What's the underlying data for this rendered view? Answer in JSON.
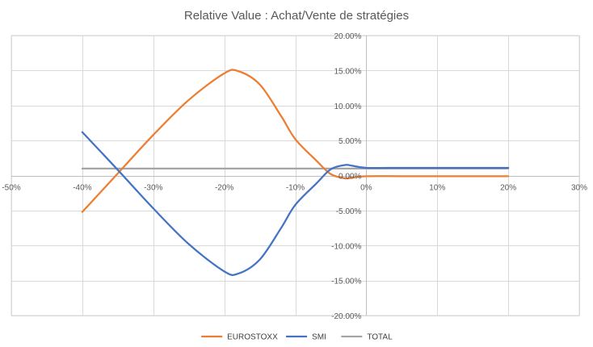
{
  "chart_data": {
    "type": "line",
    "title": "Relative Value : Achat/Vente de stratégies",
    "xlabel": "",
    "ylabel": "",
    "xlim": [
      -0.5,
      0.3
    ],
    "ylim": [
      -0.2,
      0.2
    ],
    "x_ticks": [
      -0.5,
      -0.4,
      -0.3,
      -0.2,
      -0.1,
      0,
      0.1,
      0.2,
      0.3
    ],
    "x_tick_labels": [
      "-50%",
      "-40%",
      "-30%",
      "-20%",
      "-10%",
      "0%",
      "10%",
      "20%",
      "30%"
    ],
    "y_ticks": [
      0.2,
      0.15,
      0.1,
      0.05,
      0,
      -0.05,
      -0.1,
      -0.15,
      -0.2
    ],
    "y_tick_labels": [
      "20.00%",
      "15.00%",
      "10.00%",
      "5.00%",
      "0.00%",
      "-5.00%",
      "-10.00%",
      "-15.00%",
      "-20.00%"
    ],
    "grid": true,
    "legend_position": "bottom",
    "series": [
      {
        "name": "EUROSTOXX",
        "color": "#ED7D31",
        "x": [
          -0.4,
          -0.35,
          -0.3,
          -0.25,
          -0.2,
          -0.18,
          -0.15,
          -0.12,
          -0.1,
          -0.07,
          -0.05,
          -0.03,
          -0.02,
          0,
          0.05,
          0.1,
          0.15,
          0.2
        ],
        "y": [
          -0.052,
          0.003,
          0.058,
          0.108,
          0.146,
          0.149,
          0.13,
          0.085,
          0.052,
          0.021,
          0.002,
          -0.004,
          -0.003,
          -0.001,
          -0.001,
          -0.001,
          -0.001,
          -0.001
        ]
      },
      {
        "name": "SMI",
        "color": "#4472C4",
        "x": [
          -0.4,
          -0.35,
          -0.3,
          -0.25,
          -0.2,
          -0.18,
          -0.15,
          -0.12,
          -0.1,
          -0.07,
          -0.05,
          -0.03,
          -0.02,
          0,
          0.05,
          0.1,
          0.15,
          0.2
        ],
        "y": [
          0.062,
          0.008,
          -0.047,
          -0.098,
          -0.137,
          -0.14,
          -0.12,
          -0.075,
          -0.042,
          -0.011,
          0.009,
          0.015,
          0.014,
          0.011,
          0.011,
          0.011,
          0.011,
          0.011
        ]
      },
      {
        "name": "TOTAL",
        "color": "#A5A5A5",
        "x": [
          -0.4,
          -0.35,
          -0.3,
          -0.25,
          -0.2,
          -0.18,
          -0.15,
          -0.12,
          -0.1,
          -0.07,
          -0.05,
          -0.03,
          -0.02,
          0,
          0.05,
          0.1,
          0.15,
          0.2
        ],
        "y": [
          0.01,
          0.01,
          0.01,
          0.01,
          0.01,
          0.01,
          0.01,
          0.01,
          0.01,
          0.01,
          0.01,
          0.01,
          0.01,
          0.01,
          0.01,
          0.01,
          0.01,
          0.01
        ]
      }
    ]
  }
}
